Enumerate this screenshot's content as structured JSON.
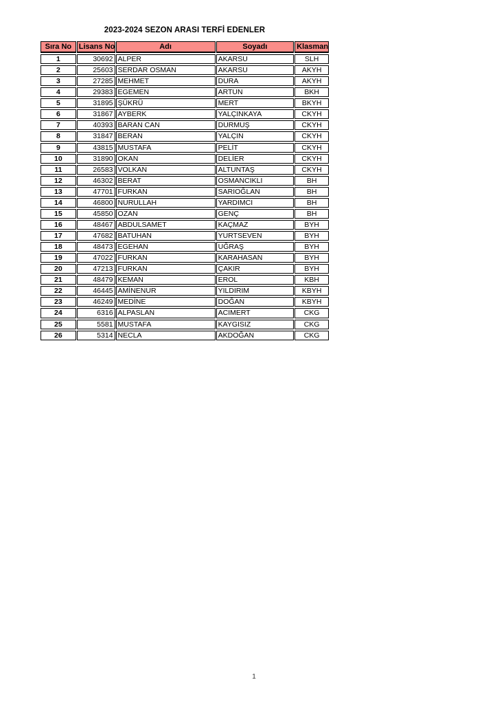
{
  "title": "2023-2024 SEZON ARASI TERFİ EDENLER",
  "colors": {
    "header_bg": "#fa8d89",
    "border": "#000000",
    "text": "#000000",
    "page_bg": "#ffffff"
  },
  "table": {
    "columns": [
      {
        "key": "sira_no",
        "label": "Sıra No"
      },
      {
        "key": "lisans_no",
        "label": "Lisans No"
      },
      {
        "key": "adi",
        "label": "Adı"
      },
      {
        "key": "soyadi",
        "label": "Soyadı"
      },
      {
        "key": "klasman",
        "label": "Klasman"
      }
    ],
    "rows": [
      {
        "sira_no": "1",
        "lisans_no": "30692",
        "adi": "ALPER",
        "soyadi": "AKARSU",
        "klasman": "SLH"
      },
      {
        "sira_no": "2",
        "lisans_no": "25603",
        "adi": "SERDAR OSMAN",
        "soyadi": "AKARSU",
        "klasman": "AKYH"
      },
      {
        "sira_no": "3",
        "lisans_no": "27285",
        "adi": "MEHMET",
        "soyadi": "DURA",
        "klasman": "AKYH"
      },
      {
        "sira_no": "4",
        "lisans_no": "29383",
        "adi": "EGEMEN",
        "soyadi": "ARTUN",
        "klasman": "BKH"
      },
      {
        "sira_no": "5",
        "lisans_no": "31895",
        "adi": "ŞÜKRÜ",
        "soyadi": "MERT",
        "klasman": "BKYH"
      },
      {
        "sira_no": "6",
        "lisans_no": "31867",
        "adi": "AYBERK",
        "soyadi": "YALÇINKAYA",
        "klasman": "CKYH"
      },
      {
        "sira_no": "7",
        "lisans_no": "40393",
        "adi": "BARAN CAN",
        "soyadi": "DURMUŞ",
        "klasman": "CKYH"
      },
      {
        "sira_no": "8",
        "lisans_no": "31847",
        "adi": "BERAN",
        "soyadi": "YALÇIN",
        "klasman": "CKYH"
      },
      {
        "sira_no": "9",
        "lisans_no": "43815",
        "adi": "MUSTAFA",
        "soyadi": "PELİT",
        "klasman": "CKYH"
      },
      {
        "sira_no": "10",
        "lisans_no": "31890",
        "adi": "OKAN",
        "soyadi": "DELİER",
        "klasman": "CKYH"
      },
      {
        "sira_no": "11",
        "lisans_no": "26583",
        "adi": "VOLKAN",
        "soyadi": "ALTUNTAŞ",
        "klasman": "CKYH"
      },
      {
        "sira_no": "12",
        "lisans_no": "46302",
        "adi": "BERAT",
        "soyadi": "OSMANCIKLI",
        "klasman": "BH"
      },
      {
        "sira_no": "13",
        "lisans_no": "47701",
        "adi": "FURKAN",
        "soyadi": "SARIOĞLAN",
        "klasman": "BH"
      },
      {
        "sira_no": "14",
        "lisans_no": "46800",
        "adi": "NURULLAH",
        "soyadi": "YARDIMCI",
        "klasman": "BH"
      },
      {
        "sira_no": "15",
        "lisans_no": "45850",
        "adi": "OZAN",
        "soyadi": "GENÇ",
        "klasman": "BH"
      },
      {
        "sira_no": "16",
        "lisans_no": "48467",
        "adi": "ABDULSAMET",
        "soyadi": "KAÇMAZ",
        "klasman": "BYH"
      },
      {
        "sira_no": "17",
        "lisans_no": "47682",
        "adi": "BATUHAN",
        "soyadi": "YURTSEVEN",
        "klasman": "BYH"
      },
      {
        "sira_no": "18",
        "lisans_no": "48473",
        "adi": "EGEHAN",
        "soyadi": "UĞRAŞ",
        "klasman": "BYH"
      },
      {
        "sira_no": "19",
        "lisans_no": "47022",
        "adi": "FURKAN",
        "soyadi": "KARAHASAN",
        "klasman": "BYH"
      },
      {
        "sira_no": "20",
        "lisans_no": "47213",
        "adi": "FURKAN",
        "soyadi": "ÇAKIR",
        "klasman": "BYH"
      },
      {
        "sira_no": "21",
        "lisans_no": "48479",
        "adi": "KEMAN",
        "soyadi": "EROL",
        "klasman": "KBH"
      },
      {
        "sira_no": "22",
        "lisans_no": "46445",
        "adi": "AMİNENUR",
        "soyadi": "YILDIRIM",
        "klasman": "KBYH"
      },
      {
        "sira_no": "23",
        "lisans_no": "46249",
        "adi": "MEDİNE",
        "soyadi": "DOĞAN",
        "klasman": "KBYH"
      },
      {
        "sira_no": "24",
        "lisans_no": "6316",
        "adi": "ALPASLAN",
        "soyadi": "ACIMERT",
        "klasman": "CKG"
      },
      {
        "sira_no": "25",
        "lisans_no": "5581",
        "adi": "MUSTAFA",
        "soyadi": "KAYGISIZ",
        "klasman": "CKG"
      },
      {
        "sira_no": "26",
        "lisans_no": "5314",
        "adi": "NECLA",
        "soyadi": "AKDOĞAN",
        "klasman": "CKG"
      }
    ]
  },
  "footer": {
    "page_number": "1"
  }
}
